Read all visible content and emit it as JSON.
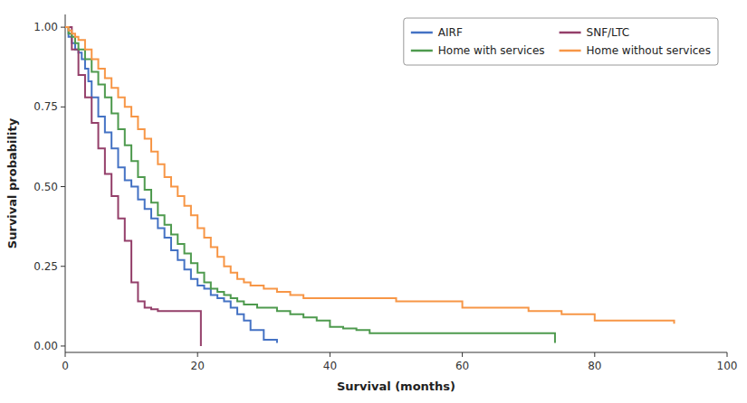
{
  "chart_data": {
    "type": "step",
    "xlabel": "Survival (months)",
    "ylabel": "Survival probability",
    "xlim": [
      0,
      100
    ],
    "ylim": [
      -0.02,
      1.04
    ],
    "xticks": [
      0,
      20,
      40,
      60,
      80,
      100
    ],
    "yticks": [
      {
        "value": 0.0,
        "label": "0.00"
      },
      {
        "value": 0.25,
        "label": "0.25"
      },
      {
        "value": 0.5,
        "label": "0.50"
      },
      {
        "value": 0.75,
        "label": "0.75"
      },
      {
        "value": 1.0,
        "label": "1.00"
      }
    ],
    "grid": false,
    "legend": "upper right",
    "series": [
      {
        "name": "AIRF",
        "color": "#4472C4",
        "x": [
          0,
          0.5,
          1,
          1.5,
          2,
          2.5,
          3,
          3.5,
          4,
          5,
          6,
          7,
          8,
          9,
          10,
          11,
          12,
          13,
          14,
          15,
          16,
          17,
          18,
          19,
          20,
          21,
          22,
          23,
          24,
          25,
          26,
          27,
          28,
          30,
          32
        ],
        "values": [
          1.0,
          0.97,
          0.95,
          0.93,
          0.92,
          0.9,
          0.87,
          0.83,
          0.78,
          0.72,
          0.67,
          0.62,
          0.56,
          0.52,
          0.5,
          0.46,
          0.43,
          0.4,
          0.37,
          0.34,
          0.3,
          0.27,
          0.24,
          0.21,
          0.19,
          0.18,
          0.16,
          0.15,
          0.14,
          0.12,
          0.1,
          0.08,
          0.05,
          0.02,
          0.01
        ]
      },
      {
        "name": "SNF/LTC",
        "color": "#943F6A",
        "x": [
          0,
          1,
          2,
          3,
          4,
          5,
          6,
          7,
          8,
          9,
          10,
          11,
          12,
          13,
          14,
          15,
          16,
          17,
          18,
          19,
          20,
          20.5
        ],
        "values": [
          1.0,
          0.93,
          0.85,
          0.78,
          0.7,
          0.62,
          0.54,
          0.47,
          0.4,
          0.33,
          0.2,
          0.14,
          0.12,
          0.115,
          0.11,
          0.11,
          0.11,
          0.11,
          0.11,
          0.11,
          0.11,
          0.0
        ]
      },
      {
        "name": "Home with services",
        "color": "#4E9A4E",
        "x": [
          0,
          0.5,
          1,
          1.5,
          2,
          3,
          4,
          5,
          6,
          7,
          8,
          9,
          10,
          11,
          12,
          13,
          14,
          15,
          16,
          17,
          18,
          19,
          20,
          21,
          22,
          23,
          24,
          25,
          26,
          27,
          28,
          29,
          30,
          32,
          34,
          36,
          38,
          40,
          42,
          44,
          46,
          48,
          72,
          74
        ],
        "values": [
          1.0,
          0.98,
          0.97,
          0.95,
          0.93,
          0.9,
          0.86,
          0.82,
          0.78,
          0.73,
          0.68,
          0.63,
          0.58,
          0.53,
          0.49,
          0.45,
          0.41,
          0.38,
          0.35,
          0.32,
          0.29,
          0.26,
          0.23,
          0.2,
          0.18,
          0.17,
          0.16,
          0.15,
          0.14,
          0.13,
          0.13,
          0.12,
          0.12,
          0.11,
          0.1,
          0.09,
          0.08,
          0.06,
          0.055,
          0.05,
          0.04,
          0.04,
          0.04,
          0.01
        ]
      },
      {
        "name": "Home without services",
        "color": "#F79646",
        "x": [
          0,
          0.5,
          1,
          1.5,
          2,
          3,
          4,
          5,
          6,
          7,
          8,
          9,
          10,
          11,
          12,
          13,
          14,
          15,
          16,
          17,
          18,
          19,
          20,
          21,
          22,
          23,
          24,
          25,
          26,
          27,
          28,
          30,
          32,
          34,
          36,
          38,
          40,
          42,
          44,
          46,
          48,
          50,
          52,
          54,
          56,
          58,
          60,
          63,
          65,
          70,
          75,
          78,
          80,
          92
        ],
        "values": [
          1.0,
          0.99,
          0.98,
          0.97,
          0.96,
          0.93,
          0.9,
          0.87,
          0.84,
          0.81,
          0.78,
          0.75,
          0.72,
          0.68,
          0.65,
          0.61,
          0.57,
          0.53,
          0.5,
          0.47,
          0.44,
          0.41,
          0.37,
          0.34,
          0.31,
          0.28,
          0.25,
          0.23,
          0.21,
          0.2,
          0.19,
          0.18,
          0.17,
          0.16,
          0.15,
          0.15,
          0.15,
          0.15,
          0.15,
          0.15,
          0.15,
          0.14,
          0.14,
          0.14,
          0.14,
          0.14,
          0.12,
          0.12,
          0.12,
          0.11,
          0.1,
          0.1,
          0.08,
          0.07
        ]
      }
    ]
  }
}
